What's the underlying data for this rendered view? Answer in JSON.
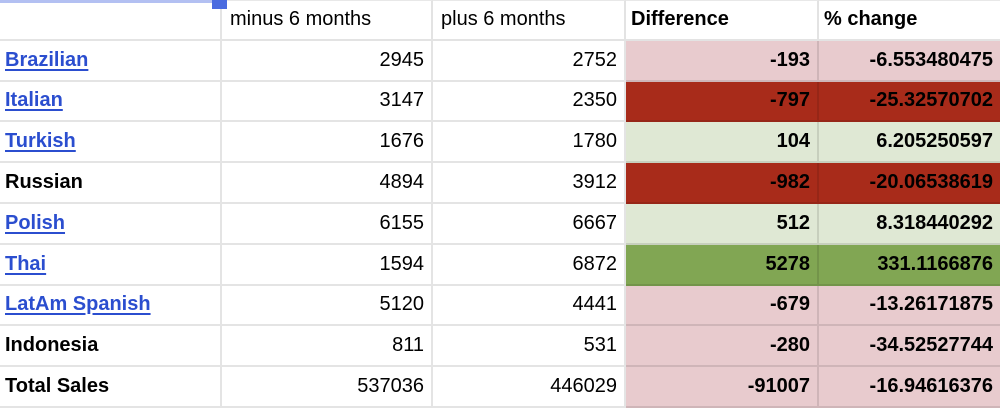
{
  "table": {
    "headers": [
      "",
      "minus 6 months",
      "plus 6 months",
      "Difference",
      "% change"
    ],
    "rows": [
      {
        "name": "Brazilian",
        "link": true,
        "minus6": "2945",
        "plus6": "2752",
        "difference": "-193",
        "pct_change": "-6.553480475",
        "highlight": "pink"
      },
      {
        "name": "Italian",
        "link": true,
        "minus6": "3147",
        "plus6": "2350",
        "difference": "-797",
        "pct_change": "-25.32570702",
        "highlight": "dark_red"
      },
      {
        "name": "Turkish",
        "link": true,
        "minus6": "1676",
        "plus6": "1780",
        "difference": "104",
        "pct_change": "6.205250597",
        "highlight": "light_green"
      },
      {
        "name": "Russian",
        "link": false,
        "minus6": "4894",
        "plus6": "3912",
        "difference": "-982",
        "pct_change": "-20.06538619",
        "highlight": "dark_red"
      },
      {
        "name": "Polish",
        "link": true,
        "minus6": "6155",
        "plus6": "6667",
        "difference": "512",
        "pct_change": "8.318440292",
        "highlight": "light_green"
      },
      {
        "name": "Thai",
        "link": true,
        "minus6": "1594",
        "plus6": "6872",
        "difference": "5278",
        "pct_change": "331.1166876",
        "highlight": "green"
      },
      {
        "name": "LatAm Spanish",
        "link": true,
        "minus6": "5120",
        "plus6": "4441",
        "difference": "-679",
        "pct_change": "-13.26171875",
        "highlight": "pink"
      },
      {
        "name": "Indonesia",
        "link": false,
        "minus6": "811",
        "plus6": "531",
        "difference": "-280",
        "pct_change": "-34.52527744",
        "highlight": "pink"
      },
      {
        "name": "Total Sales",
        "link": false,
        "minus6": "537036",
        "plus6": "446029",
        "difference": "-91007",
        "pct_change": "-16.94616376",
        "highlight": "pink"
      }
    ]
  },
  "colors": {
    "pink": "#e8cbce",
    "dark_red": "#a82b1a",
    "light_green": "#dfe8d4",
    "green": "#81a653",
    "link_blue": "#2b4ecf",
    "gridline": "#e2e2e2",
    "selection_bar": "#b3c0f2",
    "selection_handle": "#4a6be0"
  }
}
